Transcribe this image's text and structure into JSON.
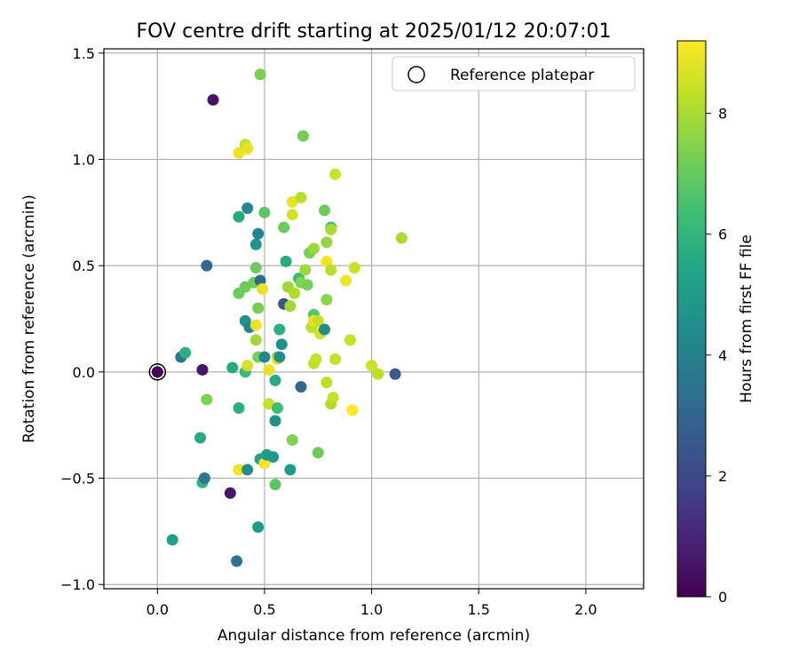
{
  "chart_data": {
    "type": "scatter",
    "title": "FOV centre drift starting at 2025/01/12 20:07:01",
    "xlabel": "Angular distance from reference (arcmin)",
    "ylabel": "Rotation from reference (arcmin)",
    "xlim": [
      -0.25,
      2.27
    ],
    "ylim": [
      -1.02,
      1.52
    ],
    "xticks": [
      0.0,
      0.5,
      1.0,
      1.5,
      2.0
    ],
    "xtick_labels": [
      "0.0",
      "0.5",
      "1.0",
      "1.5",
      "2.0"
    ],
    "yticks": [
      -1.0,
      -0.5,
      0.0,
      0.5,
      1.0,
      1.5
    ],
    "ytick_labels": [
      "−1.0",
      "−0.5",
      "0.0",
      "0.5",
      "1.0",
      "1.5"
    ],
    "grid": true,
    "legend": {
      "position": "upper right",
      "entries": [
        "Reference platepar"
      ]
    },
    "reference_point": {
      "x": 0.0,
      "y": 0.0
    },
    "colorbar": {
      "label": "Hours from first FF file",
      "colormap": "viridis",
      "min": 0,
      "max": 9.2,
      "ticks": [
        0,
        2,
        4,
        6,
        8
      ],
      "tick_labels": [
        "0",
        "2",
        "4",
        "6",
        "8"
      ]
    },
    "points": [
      {
        "x": 0.0,
        "y": 0.0,
        "c": 0.1
      },
      {
        "x": 0.21,
        "y": 0.01,
        "c": 0.5
      },
      {
        "x": 0.26,
        "y": 1.28,
        "c": 0.5
      },
      {
        "x": 0.34,
        "y": -0.57,
        "c": 0.6
      },
      {
        "x": 0.11,
        "y": 0.07,
        "c": 3.6
      },
      {
        "x": 0.13,
        "y": 0.09,
        "c": 5.8
      },
      {
        "x": 0.07,
        "y": -0.79,
        "c": 5.2
      },
      {
        "x": 0.2,
        "y": -0.31,
        "c": 5.6
      },
      {
        "x": 0.21,
        "y": -0.52,
        "c": 5.9
      },
      {
        "x": 0.22,
        "y": -0.5,
        "c": 3.6
      },
      {
        "x": 0.23,
        "y": -0.13,
        "c": 7.4
      },
      {
        "x": 0.23,
        "y": 0.5,
        "c": 3.2
      },
      {
        "x": 0.35,
        "y": 0.02,
        "c": 5.6
      },
      {
        "x": 0.37,
        "y": -0.89,
        "c": 3.5
      },
      {
        "x": 0.38,
        "y": -0.17,
        "c": 5.8
      },
      {
        "x": 0.38,
        "y": 0.37,
        "c": 7.1
      },
      {
        "x": 0.38,
        "y": 0.73,
        "c": 5.6
      },
      {
        "x": 0.38,
        "y": 1.03,
        "c": 8.9
      },
      {
        "x": 0.38,
        "y": -0.46,
        "c": 9.0
      },
      {
        "x": 0.41,
        "y": 1.07,
        "c": 8.4
      },
      {
        "x": 0.42,
        "y": 1.05,
        "c": 8.9
      },
      {
        "x": 0.42,
        "y": 0.77,
        "c": 4.2
      },
      {
        "x": 0.41,
        "y": 0.4,
        "c": 7.1
      },
      {
        "x": 0.41,
        "y": 0.24,
        "c": 4.6
      },
      {
        "x": 0.43,
        "y": 0.21,
        "c": 4.1
      },
      {
        "x": 0.41,
        "y": 0.0,
        "c": 6.2
      },
      {
        "x": 0.42,
        "y": -0.46,
        "c": 4.4
      },
      {
        "x": 0.42,
        "y": 0.03,
        "c": 8.6
      },
      {
        "x": 0.45,
        "y": 0.42,
        "c": 7.1
      },
      {
        "x": 0.46,
        "y": 0.6,
        "c": 4.6
      },
      {
        "x": 0.47,
        "y": 0.65,
        "c": 4.1
      },
      {
        "x": 0.46,
        "y": 0.49,
        "c": 7.1
      },
      {
        "x": 0.46,
        "y": 0.15,
        "c": 7.9
      },
      {
        "x": 0.46,
        "y": 0.22,
        "c": 8.9
      },
      {
        "x": 0.47,
        "y": 0.3,
        "c": 7.3
      },
      {
        "x": 0.47,
        "y": 0.07,
        "c": 7.3
      },
      {
        "x": 0.47,
        "y": -0.73,
        "c": 5.0
      },
      {
        "x": 0.48,
        "y": 1.4,
        "c": 7.3
      },
      {
        "x": 0.48,
        "y": 0.43,
        "c": 3.2
      },
      {
        "x": 0.49,
        "y": 0.39,
        "c": 8.9
      },
      {
        "x": 0.48,
        "y": -0.41,
        "c": 5.2
      },
      {
        "x": 0.5,
        "y": 0.75,
        "c": 6.8
      },
      {
        "x": 0.5,
        "y": -0.43,
        "c": 9.0
      },
      {
        "x": 0.5,
        "y": 0.07,
        "c": 4.2
      },
      {
        "x": 0.51,
        "y": -0.39,
        "c": 5.0
      },
      {
        "x": 0.52,
        "y": -0.15,
        "c": 8.4
      },
      {
        "x": 0.52,
        "y": 0.01,
        "c": 8.9
      },
      {
        "x": 0.54,
        "y": -0.4,
        "c": 4.8
      },
      {
        "x": 0.55,
        "y": -0.04,
        "c": 5.6
      },
      {
        "x": 0.55,
        "y": -0.53,
        "c": 6.8
      },
      {
        "x": 0.55,
        "y": -0.23,
        "c": 4.6
      },
      {
        "x": 0.56,
        "y": 0.07,
        "c": 7.4
      },
      {
        "x": 0.56,
        "y": 0.06,
        "c": 8.9
      },
      {
        "x": 0.57,
        "y": 0.07,
        "c": 4.4
      },
      {
        "x": 0.57,
        "y": 0.2,
        "c": 5.8
      },
      {
        "x": 0.56,
        "y": -0.17,
        "c": 6.3
      },
      {
        "x": 0.58,
        "y": 0.13,
        "c": 4.6
      },
      {
        "x": 0.59,
        "y": 0.68,
        "c": 7.1
      },
      {
        "x": 0.59,
        "y": 0.32,
        "c": 2.4
      },
      {
        "x": 0.6,
        "y": 0.52,
        "c": 5.6
      },
      {
        "x": 0.61,
        "y": 0.4,
        "c": 7.8
      },
      {
        "x": 0.62,
        "y": -0.46,
        "c": 5.0
      },
      {
        "x": 0.62,
        "y": 0.31,
        "c": 7.9
      },
      {
        "x": 0.63,
        "y": -0.32,
        "c": 7.4
      },
      {
        "x": 0.63,
        "y": 0.8,
        "c": 8.9
      },
      {
        "x": 0.63,
        "y": 0.74,
        "c": 8.6
      },
      {
        "x": 0.64,
        "y": 0.37,
        "c": 8.1
      },
      {
        "x": 0.66,
        "y": 0.44,
        "c": 6.2
      },
      {
        "x": 0.67,
        "y": 0.82,
        "c": 8.2
      },
      {
        "x": 0.68,
        "y": 1.11,
        "c": 7.2
      },
      {
        "x": 0.67,
        "y": 0.42,
        "c": 7.4
      },
      {
        "x": 0.67,
        "y": -0.07,
        "c": 3.0
      },
      {
        "x": 0.69,
        "y": 0.48,
        "c": 7.8
      },
      {
        "x": 0.7,
        "y": 0.41,
        "c": 7.3
      },
      {
        "x": 0.71,
        "y": 0.56,
        "c": 7.3
      },
      {
        "x": 0.72,
        "y": 0.21,
        "c": 8.3
      },
      {
        "x": 0.73,
        "y": 0.58,
        "c": 7.8
      },
      {
        "x": 0.73,
        "y": 0.27,
        "c": 6.8
      },
      {
        "x": 0.73,
        "y": 0.04,
        "c": 8.3
      },
      {
        "x": 0.73,
        "y": 0.24,
        "c": 8.9
      },
      {
        "x": 0.74,
        "y": 0.06,
        "c": 8.4
      },
      {
        "x": 0.75,
        "y": 0.24,
        "c": 8.4
      },
      {
        "x": 0.75,
        "y": -0.38,
        "c": 7.1
      },
      {
        "x": 0.76,
        "y": 0.18,
        "c": 8.6
      },
      {
        "x": 0.78,
        "y": 0.2,
        "c": 4.4
      },
      {
        "x": 0.79,
        "y": 0.61,
        "c": 7.7
      },
      {
        "x": 0.79,
        "y": 0.34,
        "c": 7.6
      },
      {
        "x": 0.79,
        "y": 0.52,
        "c": 9.0
      },
      {
        "x": 0.78,
        "y": 0.76,
        "c": 7.1
      },
      {
        "x": 0.79,
        "y": -0.05,
        "c": 8.3
      },
      {
        "x": 0.81,
        "y": 0.68,
        "c": 6.3
      },
      {
        "x": 0.81,
        "y": 0.67,
        "c": 8.0
      },
      {
        "x": 0.81,
        "y": 0.48,
        "c": 8.2
      },
      {
        "x": 0.81,
        "y": -0.15,
        "c": 8.1
      },
      {
        "x": 0.82,
        "y": -0.12,
        "c": 8.4
      },
      {
        "x": 0.83,
        "y": 0.93,
        "c": 8.5
      },
      {
        "x": 0.83,
        "y": 0.06,
        "c": 8.4
      },
      {
        "x": 0.88,
        "y": 0.43,
        "c": 9.0
      },
      {
        "x": 0.9,
        "y": 0.15,
        "c": 8.4
      },
      {
        "x": 0.91,
        "y": -0.18,
        "c": 9.2
      },
      {
        "x": 0.92,
        "y": 0.49,
        "c": 8.5
      },
      {
        "x": 1.0,
        "y": 0.03,
        "c": 8.5
      },
      {
        "x": 1.03,
        "y": -0.01,
        "c": 8.3
      },
      {
        "x": 1.11,
        "y": -0.01,
        "c": 2.6
      },
      {
        "x": 1.14,
        "y": 0.63,
        "c": 8.0
      }
    ]
  }
}
